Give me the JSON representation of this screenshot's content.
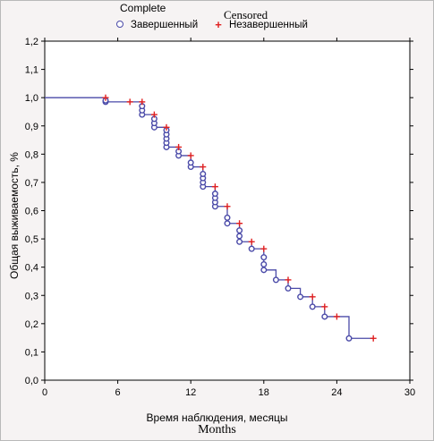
{
  "legend": {
    "title_complete": "Complete",
    "title_censored": "Censored",
    "complete_label": "Завершенный",
    "censored_label": "Незавершенный"
  },
  "chart_data": {
    "type": "line",
    "xlabel": "Время наблюдения, месяцы",
    "xlabel_translation": "Months",
    "ylabel": "Общая выживаемость, %",
    "xlim": [
      0,
      30
    ],
    "ylim": [
      0,
      1.2
    ],
    "x_ticks": [
      "0",
      "6",
      "12",
      "18",
      "24",
      "30"
    ],
    "y_ticks": [
      "0,0",
      "0,1",
      "0,2",
      "0,3",
      "0,4",
      "0,5",
      "0,6",
      "0,7",
      "0,8",
      "0,9",
      "1,0",
      "1,1",
      "1,2"
    ],
    "series": [
      {
        "name": "Завершенный",
        "kind": "step",
        "color": "#4a4aa8",
        "step_x": [
          0,
          5,
          5,
          8,
          8,
          9,
          9,
          10,
          10,
          11,
          11,
          12,
          12,
          13,
          13,
          14,
          14,
          15,
          15,
          16,
          16,
          17,
          17,
          18,
          18,
          19,
          19,
          20,
          20,
          21,
          21,
          22,
          22,
          23,
          23,
          25,
          25,
          27
        ],
        "step_y": [
          1.0,
          1.0,
          0.985,
          0.985,
          0.94,
          0.94,
          0.895,
          0.895,
          0.825,
          0.825,
          0.795,
          0.795,
          0.755,
          0.755,
          0.685,
          0.685,
          0.615,
          0.615,
          0.555,
          0.555,
          0.49,
          0.49,
          0.465,
          0.465,
          0.39,
          0.39,
          0.355,
          0.355,
          0.325,
          0.325,
          0.295,
          0.295,
          0.26,
          0.26,
          0.225,
          0.225,
          0.148,
          0.148
        ]
      },
      {
        "name": "Завершенный (events)",
        "kind": "circles",
        "color": "#4a4aa8",
        "points": [
          [
            5,
            0.985
          ],
          [
            5,
            0.99
          ],
          [
            8,
            0.94
          ],
          [
            8,
            0.955
          ],
          [
            8,
            0.97
          ],
          [
            9,
            0.895
          ],
          [
            9,
            0.91
          ],
          [
            9,
            0.925
          ],
          [
            10,
            0.825
          ],
          [
            10,
            0.84
          ],
          [
            10,
            0.855
          ],
          [
            10,
            0.87
          ],
          [
            10,
            0.885
          ],
          [
            11,
            0.795
          ],
          [
            11,
            0.81
          ],
          [
            12,
            0.755
          ],
          [
            12,
            0.77
          ],
          [
            13,
            0.685
          ],
          [
            13,
            0.7
          ],
          [
            13,
            0.715
          ],
          [
            13,
            0.73
          ],
          [
            14,
            0.615
          ],
          [
            14,
            0.63
          ],
          [
            14,
            0.645
          ],
          [
            14,
            0.66
          ],
          [
            15,
            0.555
          ],
          [
            15,
            0.575
          ],
          [
            16,
            0.49
          ],
          [
            16,
            0.51
          ],
          [
            16,
            0.53
          ],
          [
            17,
            0.465
          ],
          [
            18,
            0.39
          ],
          [
            18,
            0.41
          ],
          [
            18,
            0.435
          ],
          [
            19,
            0.355
          ],
          [
            20,
            0.325
          ],
          [
            21,
            0.295
          ],
          [
            22,
            0.26
          ],
          [
            23,
            0.225
          ],
          [
            25,
            0.148
          ]
        ]
      },
      {
        "name": "Незавершенный",
        "kind": "plus",
        "color": "#e02020",
        "points": [
          [
            5,
            1.0
          ],
          [
            7,
            0.985
          ],
          [
            8,
            0.985
          ],
          [
            9,
            0.94
          ],
          [
            10,
            0.895
          ],
          [
            11,
            0.825
          ],
          [
            12,
            0.795
          ],
          [
            13,
            0.755
          ],
          [
            14,
            0.685
          ],
          [
            15,
            0.615
          ],
          [
            16,
            0.555
          ],
          [
            17,
            0.49
          ],
          [
            18,
            0.465
          ],
          [
            20,
            0.355
          ],
          [
            22,
            0.295
          ],
          [
            23,
            0.26
          ],
          [
            24,
            0.225
          ],
          [
            27,
            0.148
          ]
        ]
      }
    ]
  }
}
